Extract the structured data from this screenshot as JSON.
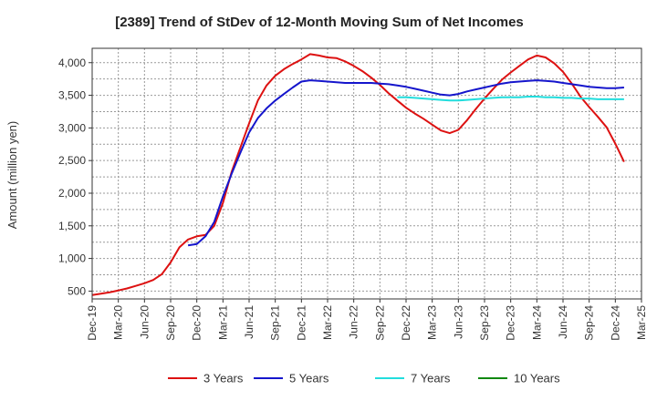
{
  "chart_data": {
    "type": "line",
    "title": "[2389]  Trend of StDev of 12-Month Moving Sum of Net Incomes",
    "ylabel": "Amount (million yen)",
    "xlabel": "",
    "ylim": [
      380,
      4220
    ],
    "yticks": [
      500,
      1000,
      1500,
      2000,
      2500,
      3000,
      3500,
      4000
    ],
    "ytick_labels": [
      "500",
      "1,000",
      "1,500",
      "2,000",
      "2,500",
      "3,000",
      "3,500",
      "4,000"
    ],
    "xticks": [
      "Dec-19",
      "Mar-20",
      "Jun-20",
      "Sep-20",
      "Dec-20",
      "Mar-21",
      "Jun-21",
      "Sep-21",
      "Dec-21",
      "Mar-22",
      "Jun-22",
      "Sep-22",
      "Dec-22",
      "Mar-23",
      "Jun-23",
      "Sep-23",
      "Dec-23",
      "Mar-24",
      "Jun-24",
      "Sep-24",
      "Dec-24",
      "Mar-25"
    ],
    "grid": true,
    "legend_position": "bottom",
    "series": [
      {
        "name": "3 Years",
        "color": "#dd1111",
        "points": [
          [
            "Dec-19",
            440
          ],
          [
            "Jan-20",
            460
          ],
          [
            "Feb-20",
            480
          ],
          [
            "Mar-20",
            510
          ],
          [
            "Apr-20",
            540
          ],
          [
            "May-20",
            580
          ],
          [
            "Jun-20",
            620
          ],
          [
            "Jul-20",
            670
          ],
          [
            "Aug-20",
            760
          ],
          [
            "Sep-20",
            940
          ],
          [
            "Oct-20",
            1170
          ],
          [
            "Nov-20",
            1290
          ],
          [
            "Dec-20",
            1340
          ],
          [
            "Jan-21",
            1360
          ],
          [
            "Feb-21",
            1500
          ],
          [
            "Mar-21",
            1850
          ],
          [
            "Apr-21",
            2330
          ],
          [
            "May-21",
            2700
          ],
          [
            "Jun-21",
            3070
          ],
          [
            "Jul-21",
            3420
          ],
          [
            "Aug-21",
            3650
          ],
          [
            "Sep-21",
            3800
          ],
          [
            "Oct-21",
            3900
          ],
          [
            "Nov-21",
            3980
          ],
          [
            "Dec-21",
            4050
          ],
          [
            "Jan-22",
            4130
          ],
          [
            "Feb-22",
            4110
          ],
          [
            "Mar-22",
            4080
          ],
          [
            "Apr-22",
            4070
          ],
          [
            "May-22",
            4020
          ],
          [
            "Jun-22",
            3950
          ],
          [
            "Jul-22",
            3870
          ],
          [
            "Aug-22",
            3770
          ],
          [
            "Sep-22",
            3660
          ],
          [
            "Oct-22",
            3530
          ],
          [
            "Nov-22",
            3420
          ],
          [
            "Dec-22",
            3310
          ],
          [
            "Jan-23",
            3220
          ],
          [
            "Feb-23",
            3140
          ],
          [
            "Mar-23",
            3050
          ],
          [
            "Apr-23",
            2960
          ],
          [
            "May-23",
            2920
          ],
          [
            "Jun-23",
            2970
          ],
          [
            "Jul-23",
            3120
          ],
          [
            "Aug-23",
            3290
          ],
          [
            "Sep-23",
            3450
          ],
          [
            "Oct-23",
            3600
          ],
          [
            "Nov-23",
            3740
          ],
          [
            "Dec-23",
            3850
          ],
          [
            "Jan-24",
            3950
          ],
          [
            "Feb-24",
            4050
          ],
          [
            "Mar-24",
            4110
          ],
          [
            "Apr-24",
            4080
          ],
          [
            "May-24",
            3990
          ],
          [
            "Jun-24",
            3860
          ],
          [
            "Jul-24",
            3680
          ],
          [
            "Aug-24",
            3480
          ],
          [
            "Sep-24",
            3320
          ],
          [
            "Oct-24",
            3170
          ],
          [
            "Nov-24",
            3010
          ],
          [
            "Dec-24",
            2760
          ],
          [
            "Jan-25",
            2480
          ]
        ]
      },
      {
        "name": "5 Years",
        "color": "#1515cc",
        "points": [
          [
            "Nov-20",
            1200
          ],
          [
            "Dec-20",
            1220
          ],
          [
            "Jan-21",
            1340
          ],
          [
            "Feb-21",
            1560
          ],
          [
            "Mar-21",
            1950
          ],
          [
            "Apr-21",
            2300
          ],
          [
            "May-21",
            2620
          ],
          [
            "Jun-21",
            2930
          ],
          [
            "Jul-21",
            3150
          ],
          [
            "Aug-21",
            3300
          ],
          [
            "Sep-21",
            3420
          ],
          [
            "Oct-21",
            3520
          ],
          [
            "Nov-21",
            3620
          ],
          [
            "Dec-21",
            3710
          ],
          [
            "Jan-22",
            3730
          ],
          [
            "Feb-22",
            3720
          ],
          [
            "Mar-22",
            3710
          ],
          [
            "Apr-22",
            3700
          ],
          [
            "May-22",
            3690
          ],
          [
            "Jun-22",
            3690
          ],
          [
            "Jul-22",
            3690
          ],
          [
            "Aug-22",
            3690
          ],
          [
            "Sep-22",
            3680
          ],
          [
            "Oct-22",
            3670
          ],
          [
            "Nov-22",
            3650
          ],
          [
            "Dec-22",
            3630
          ],
          [
            "Jan-23",
            3600
          ],
          [
            "Feb-23",
            3570
          ],
          [
            "Mar-23",
            3540
          ],
          [
            "Apr-23",
            3510
          ],
          [
            "May-23",
            3500
          ],
          [
            "Jun-23",
            3520
          ],
          [
            "Jul-23",
            3560
          ],
          [
            "Aug-23",
            3590
          ],
          [
            "Sep-23",
            3620
          ],
          [
            "Oct-23",
            3650
          ],
          [
            "Nov-23",
            3680
          ],
          [
            "Dec-23",
            3700
          ],
          [
            "Jan-24",
            3710
          ],
          [
            "Feb-24",
            3720
          ],
          [
            "Mar-24",
            3730
          ],
          [
            "Apr-24",
            3720
          ],
          [
            "May-24",
            3710
          ],
          [
            "Jun-24",
            3690
          ],
          [
            "Jul-24",
            3670
          ],
          [
            "Aug-24",
            3650
          ],
          [
            "Sep-24",
            3630
          ],
          [
            "Oct-24",
            3620
          ],
          [
            "Nov-24",
            3610
          ],
          [
            "Dec-24",
            3610
          ],
          [
            "Jan-25",
            3620
          ]
        ]
      },
      {
        "name": "7 Years",
        "color": "#22dddd",
        "points": [
          [
            "Nov-22",
            3470
          ],
          [
            "Dec-22",
            3470
          ],
          [
            "Jan-23",
            3460
          ],
          [
            "Feb-23",
            3450
          ],
          [
            "Mar-23",
            3440
          ],
          [
            "Apr-23",
            3430
          ],
          [
            "May-23",
            3420
          ],
          [
            "Jun-23",
            3420
          ],
          [
            "Jul-23",
            3430
          ],
          [
            "Aug-23",
            3440
          ],
          [
            "Sep-23",
            3450
          ],
          [
            "Oct-23",
            3460
          ],
          [
            "Nov-23",
            3470
          ],
          [
            "Dec-23",
            3470
          ],
          [
            "Jan-24",
            3470
          ],
          [
            "Feb-24",
            3480
          ],
          [
            "Mar-24",
            3480
          ],
          [
            "Apr-24",
            3470
          ],
          [
            "May-24",
            3470
          ],
          [
            "Jun-24",
            3460
          ],
          [
            "Jul-24",
            3460
          ],
          [
            "Aug-24",
            3450
          ],
          [
            "Sep-24",
            3450
          ],
          [
            "Oct-24",
            3440
          ],
          [
            "Nov-24",
            3440
          ],
          [
            "Dec-24",
            3440
          ],
          [
            "Jan-25",
            3440
          ]
        ]
      },
      {
        "name": "10 Years",
        "color": "#118811",
        "points": []
      }
    ]
  }
}
